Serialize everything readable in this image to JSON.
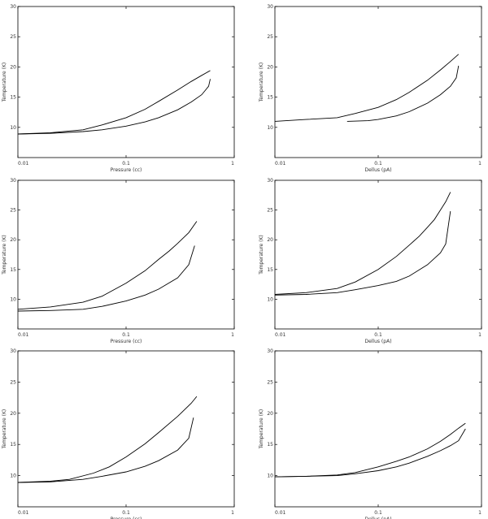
{
  "chart_data": [
    {
      "type": "line",
      "xlabel": "Pressure (cc)",
      "ylabel": "Temperature (K)",
      "x_scale": "log",
      "xlim": [
        0.01,
        1
      ],
      "ylim": [
        5,
        30
      ],
      "x_ticks": [
        "0.01",
        "0.1",
        "1"
      ],
      "y_ticks": [
        "10",
        "15",
        "20",
        "25",
        "30"
      ],
      "series": [
        {
          "x": [
            0.01,
            0.02,
            0.04,
            0.06,
            0.1,
            0.15,
            0.2,
            0.3,
            0.4,
            0.5,
            0.6
          ],
          "y": [
            8.9,
            9.1,
            9.6,
            10.4,
            11.6,
            13.0,
            14.3,
            16.2,
            17.6,
            18.6,
            19.4
          ]
        },
        {
          "x": [
            0.01,
            0.02,
            0.04,
            0.06,
            0.1,
            0.15,
            0.2,
            0.3,
            0.4,
            0.5,
            0.58,
            0.6
          ],
          "y": [
            8.9,
            9.0,
            9.3,
            9.6,
            10.2,
            10.9,
            11.6,
            12.9,
            14.2,
            15.4,
            16.8,
            18.0
          ]
        }
      ]
    },
    {
      "type": "line",
      "xlabel": "Dellus (pA)",
      "ylabel": "Temperature (K)",
      "x_scale": "log",
      "xlim": [
        0.01,
        1
      ],
      "ylim": [
        5,
        30
      ],
      "x_ticks": [
        "0.01",
        "0.1",
        "1"
      ],
      "y_ticks": [
        "10",
        "15",
        "20",
        "25",
        "30"
      ],
      "series": [
        {
          "x": [
            0.01,
            0.02,
            0.04,
            0.06,
            0.1,
            0.15,
            0.2,
            0.3,
            0.4,
            0.5,
            0.6
          ],
          "y": [
            11.0,
            11.3,
            11.6,
            12.3,
            13.3,
            14.6,
            15.8,
            17.8,
            19.5,
            20.9,
            22.1
          ]
        },
        {
          "x": [
            0.05,
            0.08,
            0.1,
            0.15,
            0.2,
            0.3,
            0.4,
            0.5,
            0.57,
            0.6
          ],
          "y": [
            11.0,
            11.1,
            11.3,
            11.9,
            12.6,
            14.0,
            15.4,
            16.8,
            18.2,
            20.2
          ]
        }
      ]
    },
    {
      "type": "line",
      "xlabel": "Pressure (cc)",
      "ylabel": "Temperature (K)",
      "x_scale": "log",
      "xlim": [
        0.01,
        1
      ],
      "ylim": [
        5,
        30
      ],
      "x_ticks": [
        "0.01",
        "0.1",
        "1"
      ],
      "y_ticks": [
        "10",
        "15",
        "20",
        "25",
        "30"
      ],
      "series": [
        {
          "x": [
            0.01,
            0.02,
            0.04,
            0.06,
            0.1,
            0.15,
            0.2,
            0.25,
            0.3,
            0.38,
            0.45
          ],
          "y": [
            8.3,
            8.7,
            9.5,
            10.5,
            12.7,
            14.8,
            16.7,
            18.1,
            19.4,
            21.2,
            23.1
          ]
        },
        {
          "x": [
            0.01,
            0.02,
            0.04,
            0.06,
            0.1,
            0.15,
            0.2,
            0.3,
            0.38,
            0.43
          ],
          "y": [
            8.0,
            8.1,
            8.3,
            8.8,
            9.7,
            10.7,
            11.7,
            13.6,
            15.8,
            19.0
          ]
        }
      ]
    },
    {
      "type": "line",
      "xlabel": "Dellus (pA)",
      "ylabel": "Temperature (K)",
      "x_scale": "log",
      "xlim": [
        0.01,
        1
      ],
      "ylim": [
        5,
        30
      ],
      "x_ticks": [
        "0.01",
        "0.1",
        "1"
      ],
      "y_ticks": [
        "10",
        "15",
        "20",
        "25",
        "30"
      ],
      "series": [
        {
          "x": [
            0.01,
            0.02,
            0.04,
            0.06,
            0.1,
            0.15,
            0.2,
            0.25,
            0.3,
            0.35,
            0.4,
            0.45,
            0.5
          ],
          "y": [
            10.8,
            11.1,
            11.8,
            12.9,
            15.0,
            17.2,
            19.1,
            20.6,
            22.1,
            23.4,
            25.0,
            26.4,
            28.0
          ]
        },
        {
          "x": [
            0.01,
            0.02,
            0.04,
            0.06,
            0.1,
            0.15,
            0.2,
            0.3,
            0.4,
            0.45,
            0.5
          ],
          "y": [
            10.7,
            10.8,
            11.1,
            11.6,
            12.3,
            13.0,
            13.9,
            15.8,
            17.8,
            19.3,
            24.8
          ]
        }
      ]
    },
    {
      "type": "line",
      "xlabel": "Pressure (cc)",
      "ylabel": "Temperature (K)",
      "x_scale": "log",
      "xlim": [
        0.01,
        1
      ],
      "ylim": [
        5,
        30
      ],
      "x_ticks": [
        "0.01",
        "0.1",
        "1"
      ],
      "y_ticks": [
        "10",
        "15",
        "20",
        "25",
        "30"
      ],
      "series": [
        {
          "x": [
            0.01,
            0.02,
            0.03,
            0.05,
            0.07,
            0.1,
            0.15,
            0.2,
            0.3,
            0.4,
            0.45
          ],
          "y": [
            8.9,
            9.1,
            9.4,
            10.4,
            11.4,
            13.0,
            15.1,
            16.9,
            19.5,
            21.6,
            22.7
          ]
        },
        {
          "x": [
            0.01,
            0.02,
            0.04,
            0.06,
            0.1,
            0.15,
            0.2,
            0.3,
            0.38,
            0.42
          ],
          "y": [
            8.9,
            9.0,
            9.4,
            9.9,
            10.6,
            11.5,
            12.4,
            14.1,
            16.0,
            19.3
          ]
        }
      ]
    },
    {
      "type": "line",
      "xlabel": "Dellus (pA)",
      "ylabel": "Temperature (K)",
      "x_scale": "log",
      "xlim": [
        0.01,
        1
      ],
      "ylim": [
        5,
        30
      ],
      "x_ticks": [
        "0.01",
        "0.1",
        "1"
      ],
      "y_ticks": [
        "10",
        "15",
        "20",
        "25",
        "30"
      ],
      "series": [
        {
          "x": [
            0.01,
            0.02,
            0.04,
            0.06,
            0.1,
            0.15,
            0.2,
            0.3,
            0.4,
            0.5,
            0.6,
            0.7
          ],
          "y": [
            9.8,
            9.9,
            10.1,
            10.5,
            11.4,
            12.3,
            13.0,
            14.3,
            15.5,
            16.6,
            17.6,
            18.4
          ]
        },
        {
          "x": [
            0.01,
            0.02,
            0.04,
            0.06,
            0.1,
            0.15,
            0.2,
            0.3,
            0.4,
            0.5,
            0.6,
            0.7
          ],
          "y": [
            9.8,
            9.9,
            10.0,
            10.3,
            10.8,
            11.4,
            12.0,
            13.1,
            14.0,
            14.8,
            15.6,
            17.5
          ]
        }
      ]
    }
  ]
}
